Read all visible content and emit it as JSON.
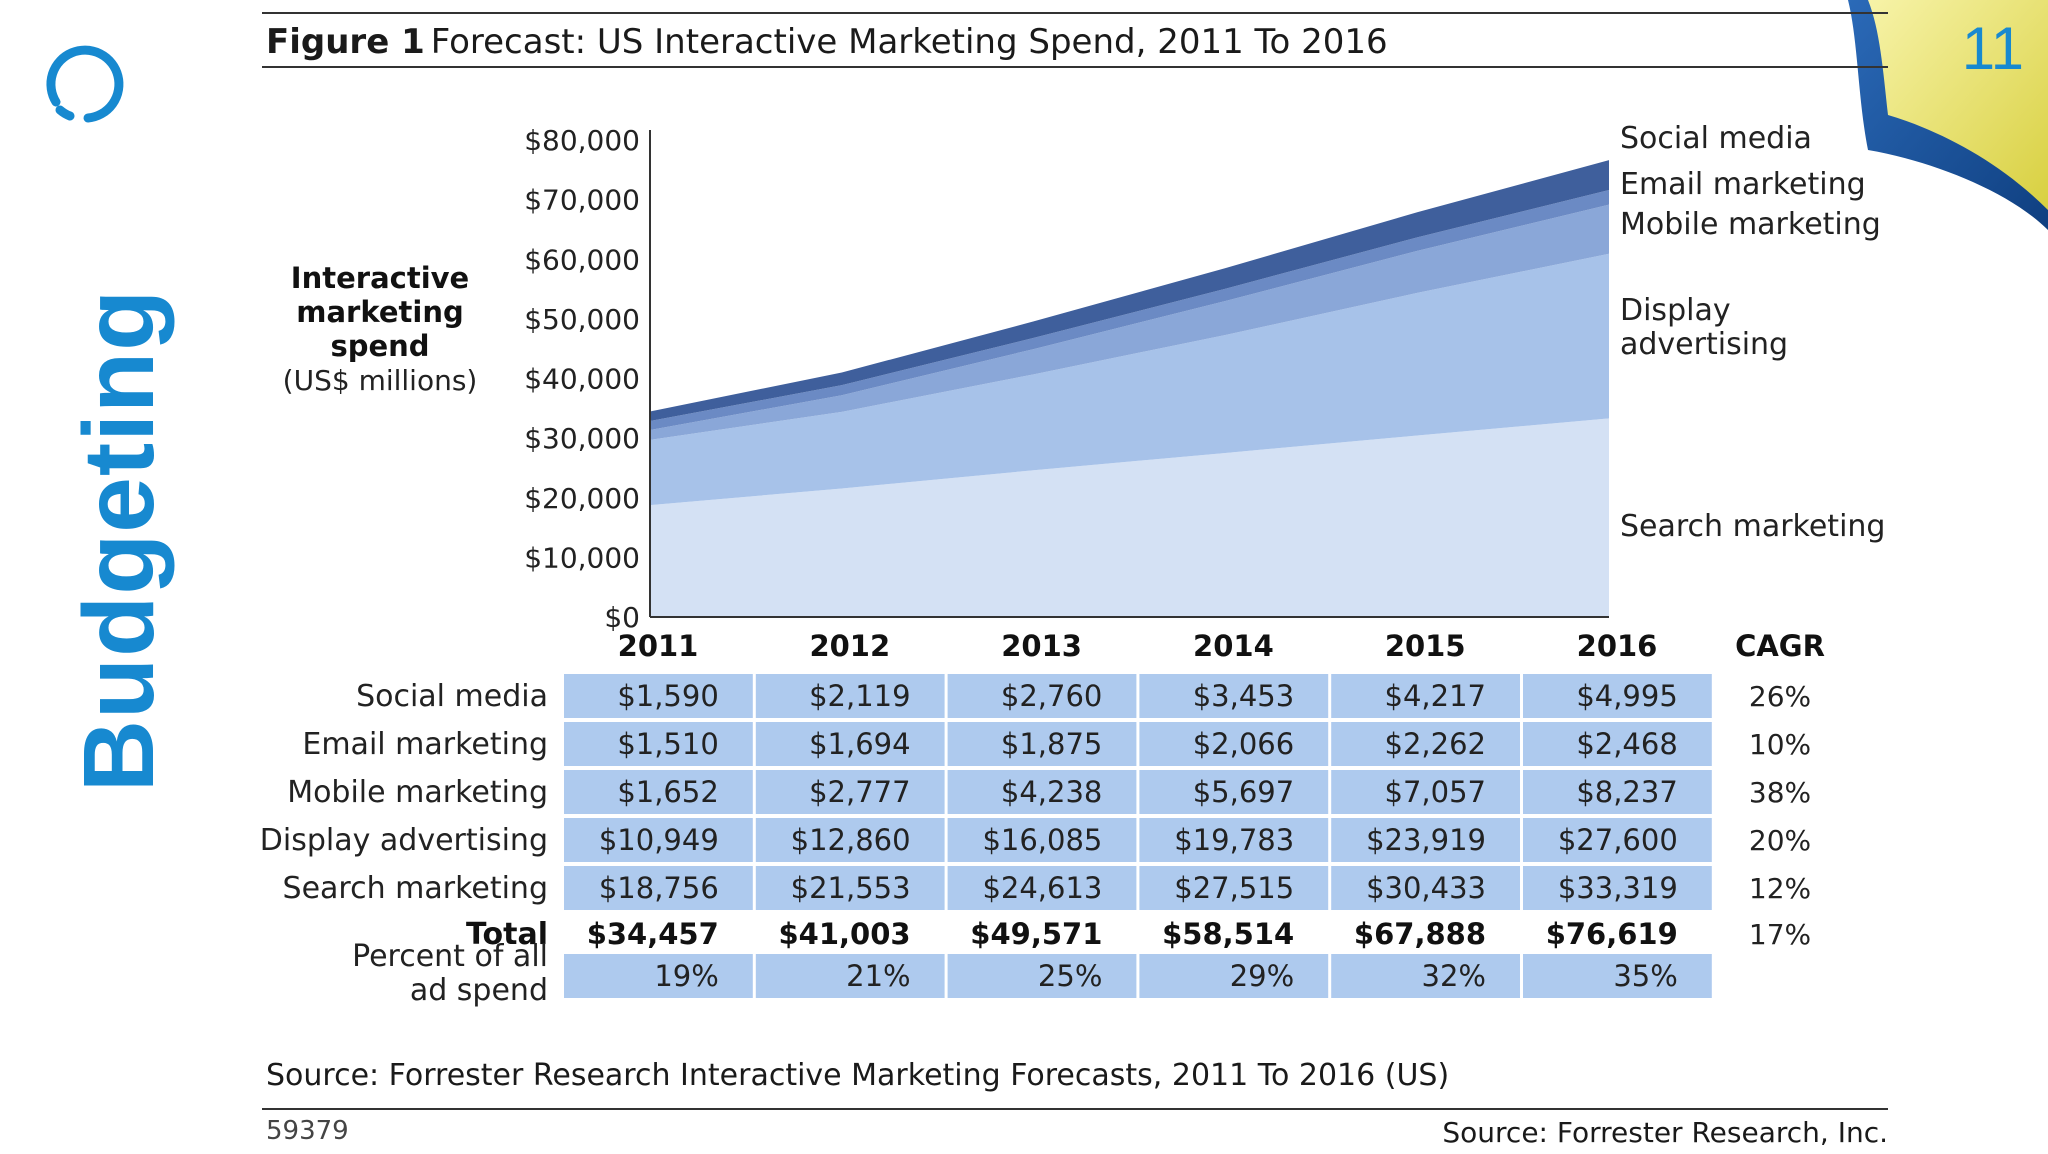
{
  "slide": {
    "side_title": "Budgeting",
    "page_number": "11",
    "accent_color": "#1789d0"
  },
  "figure": {
    "label": "Figure 1",
    "title": "Forecast: US Interactive Marketing Spend, 2011 To 2016",
    "source": "Source: Forrester Research Interactive Marketing Forecasts, 2011 To 2016 (US)",
    "id": "59379",
    "credit": "Source: Forrester Research, Inc."
  },
  "chart_data": {
    "type": "area",
    "title": "Forecast: US Interactive Marketing Spend, 2011 To 2016",
    "ylabel_lines": [
      "Interactive",
      "marketing",
      "spend"
    ],
    "ylabel_units": "(US$ millions)",
    "ylim": [
      0,
      80000
    ],
    "yticks": [
      "$0",
      "$10,000",
      "$20,000",
      "$30,000",
      "$40,000",
      "$50,000",
      "$60,000",
      "$70,000",
      "$80,000"
    ],
    "categories": [
      "2011",
      "2012",
      "2013",
      "2014",
      "2015",
      "2016"
    ],
    "series": [
      {
        "name": "Search marketing",
        "values": [
          18756,
          21553,
          24613,
          27515,
          30433,
          33319
        ],
        "color": "#d4e1f4",
        "legend": [
          "Search marketing"
        ],
        "table_label": "Search marketing",
        "table_values": [
          "$18,756",
          "$21,553",
          "$24,613",
          "$27,515",
          "$30,433",
          "$33,319"
        ],
        "cagr": "12%"
      },
      {
        "name": "Display advertising",
        "values": [
          10949,
          12860,
          16085,
          19783,
          23919,
          27600
        ],
        "color": "#a7c2e9",
        "legend": [
          "Display",
          "advertising"
        ],
        "table_label": "Display advertising",
        "table_values": [
          "$10,949",
          "$12,860",
          "$16,085",
          "$19,783",
          "$23,919",
          "$27,600"
        ],
        "cagr": "20%"
      },
      {
        "name": "Mobile marketing",
        "values": [
          1652,
          2777,
          4238,
          5697,
          7057,
          8237
        ],
        "color": "#8aa7d8",
        "legend": [
          "Mobile marketing"
        ],
        "table_label": "Mobile marketing",
        "table_values": [
          "$1,652",
          "$2,777",
          "$4,238",
          "$5,697",
          "$7,057",
          "$8,237"
        ],
        "cagr": "38%"
      },
      {
        "name": "Email marketing",
        "values": [
          1510,
          1694,
          1875,
          2066,
          2262,
          2468
        ],
        "color": "#6b8ac4",
        "legend": [
          "Email marketing"
        ],
        "table_label": "Email marketing",
        "table_values": [
          "$1,510",
          "$1,694",
          "$1,875",
          "$2,066",
          "$2,262",
          "$2,468"
        ],
        "cagr": "10%"
      },
      {
        "name": "Social media",
        "values": [
          1590,
          2119,
          2760,
          3453,
          4217,
          4995
        ],
        "color": "#3f5f9c",
        "legend": [
          "Social media"
        ],
        "table_label": "Social media",
        "table_values": [
          "$1,590",
          "$2,119",
          "$2,760",
          "$3,453",
          "$4,217",
          "$4,995"
        ],
        "cagr": "26%"
      }
    ],
    "cagr_header": "CAGR",
    "total": {
      "label": "Total",
      "values": [
        "$34,457",
        "$41,003",
        "$49,571",
        "$58,514",
        "$67,888",
        "$76,619"
      ],
      "cagr": "17%"
    },
    "percent": {
      "label_lines": [
        "Percent of all",
        "ad spend"
      ],
      "values": [
        "19%",
        "21%",
        "25%",
        "29%",
        "32%",
        "35%"
      ]
    },
    "cell_color": "#aecaee",
    "axis_color": "#333333"
  }
}
